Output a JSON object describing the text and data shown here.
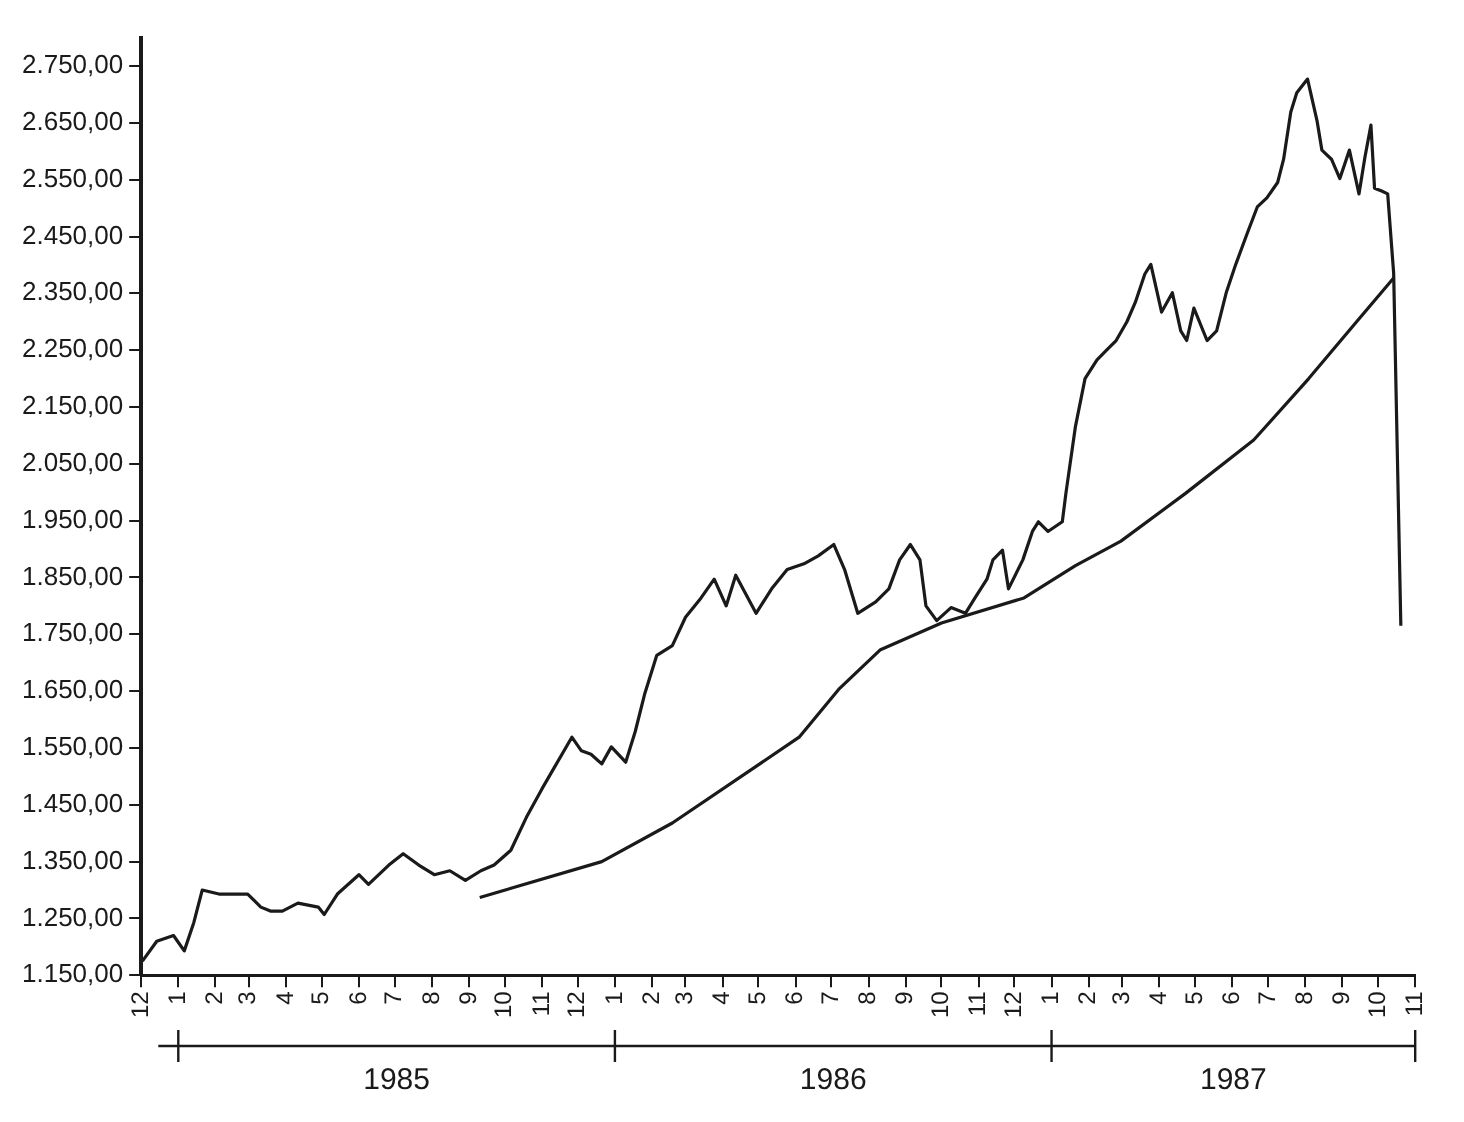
{
  "chart_data": {
    "type": "line",
    "xlim": [
      "1984-12-01",
      "1987-11-01"
    ],
    "xticks": [
      {
        "value": "1984-12-01",
        "label": "12"
      },
      {
        "value": "1985-01-01",
        "label": "1"
      },
      {
        "value": "1985-02-01",
        "label": "2"
      },
      {
        "value": "1985-03-01",
        "label": "3"
      },
      {
        "value": "1985-04-01",
        "label": "4"
      },
      {
        "value": "1985-05-01",
        "label": "5"
      },
      {
        "value": "1985-06-01",
        "label": "6"
      },
      {
        "value": "1985-07-01",
        "label": "7"
      },
      {
        "value": "1985-08-01",
        "label": "8"
      },
      {
        "value": "1985-09-01",
        "label": "9"
      },
      {
        "value": "1985-10-01",
        "label": "10"
      },
      {
        "value": "1985-11-01",
        "label": "11"
      },
      {
        "value": "1985-12-01",
        "label": "12"
      },
      {
        "value": "1986-01-01",
        "label": "1"
      },
      {
        "value": "1986-02-01",
        "label": "2"
      },
      {
        "value": "1986-03-01",
        "label": "3"
      },
      {
        "value": "1986-04-01",
        "label": "4"
      },
      {
        "value": "1986-05-01",
        "label": "5"
      },
      {
        "value": "1986-06-01",
        "label": "6"
      },
      {
        "value": "1986-07-01",
        "label": "7"
      },
      {
        "value": "1986-08-01",
        "label": "8"
      },
      {
        "value": "1986-09-01",
        "label": "9"
      },
      {
        "value": "1986-10-01",
        "label": "10"
      },
      {
        "value": "1986-11-01",
        "label": "11"
      },
      {
        "value": "1986-12-01",
        "label": "12"
      },
      {
        "value": "1987-01-01",
        "label": "1"
      },
      {
        "value": "1987-02-01",
        "label": "2"
      },
      {
        "value": "1987-03-01",
        "label": "3"
      },
      {
        "value": "1987-04-01",
        "label": "4"
      },
      {
        "value": "1987-05-01",
        "label": "5"
      },
      {
        "value": "1987-06-01",
        "label": "6"
      },
      {
        "value": "1987-07-01",
        "label": "7"
      },
      {
        "value": "1987-08-01",
        "label": "8"
      },
      {
        "value": "1987-09-01",
        "label": "9"
      },
      {
        "value": "1987-10-01",
        "label": "10"
      },
      {
        "value": "1987-11-01",
        "label": "11"
      }
    ],
    "ylim": [
      1150,
      2800
    ],
    "yticks": [
      {
        "value": 1150,
        "label": "1.150,00"
      },
      {
        "value": 1250,
        "label": "1.250,00"
      },
      {
        "value": 1350,
        "label": "1.350,00"
      },
      {
        "value": 1450,
        "label": "1.450,00"
      },
      {
        "value": 1550,
        "label": "1.550,00"
      },
      {
        "value": 1650,
        "label": "1.650,00"
      },
      {
        "value": 1750,
        "label": "1.750,00"
      },
      {
        "value": 1850,
        "label": "1.850,00"
      },
      {
        "value": 1950,
        "label": "1.950,00"
      },
      {
        "value": 2050,
        "label": "2.050,00"
      },
      {
        "value": 2150,
        "label": "2.150,00"
      },
      {
        "value": 2250,
        "label": "2.250,00"
      },
      {
        "value": 2350,
        "label": "2.350,00"
      },
      {
        "value": 2450,
        "label": "2.450,00"
      },
      {
        "value": 2550,
        "label": "2.550,00"
      },
      {
        "value": 2650,
        "label": "2.650,00"
      },
      {
        "value": 2750,
        "label": "2.750,00"
      }
    ],
    "grid": false,
    "legend": false,
    "marker": "none",
    "line_style": "solid",
    "annotations": [
      "1985",
      "1986",
      "1987"
    ],
    "series": [
      {
        "color": "#1a1a1a",
        "x": [
          "1984-12-02",
          "1984-12-14",
          "1984-12-28",
          "1985-01-06",
          "1985-01-14",
          "1985-01-21",
          "1985-02-04",
          "1985-02-28",
          "1985-03-11",
          "1985-03-19",
          "1985-03-29",
          "1985-04-11",
          "1985-04-28",
          "1985-05-03",
          "1985-05-14",
          "1985-06-01",
          "1985-06-09",
          "1985-06-26",
          "1985-07-08",
          "1985-07-21",
          "1985-08-03",
          "1985-08-16",
          "1985-08-29",
          "1985-09-11",
          "1985-09-22",
          "1985-10-06",
          "1985-10-19",
          "1985-11-01",
          "1985-11-12",
          "1985-11-26",
          "1985-12-04",
          "1985-12-12",
          "1985-12-21",
          "1985-12-29",
          "1986-01-10",
          "1986-01-18",
          "1986-01-26",
          "1986-02-05",
          "1986-02-18",
          "1986-03-01",
          "1986-03-14",
          "1986-03-25",
          "1986-04-04",
          "1986-04-12",
          "1986-04-29",
          "1986-05-12",
          "1986-05-25",
          "1986-06-08",
          "1986-06-20",
          "1986-07-03",
          "1986-07-12",
          "1986-07-23",
          "1986-08-07",
          "1986-08-18",
          "1986-08-27",
          "1986-09-05",
          "1986-09-13",
          "1986-09-18",
          "1986-09-27",
          "1986-10-09",
          "1986-10-21",
          "1986-10-29",
          "1986-11-08",
          "1986-11-13",
          "1986-11-21",
          "1986-11-26",
          "1986-12-08",
          "1986-12-16",
          "1986-12-21",
          "1986-12-29",
          "1987-01-10",
          "1987-01-13",
          "1987-01-21",
          "1987-01-29",
          "1987-02-08",
          "1987-02-16",
          "1987-02-24",
          "1987-03-05",
          "1987-03-12",
          "1987-03-20",
          "1987-03-25",
          "1987-04-03",
          "1987-04-12",
          "1987-04-19",
          "1987-04-24",
          "1987-04-30",
          "1987-05-11",
          "1987-05-19",
          "1987-05-27",
          "1987-06-04",
          "1987-06-14",
          "1987-06-22",
          "1987-06-30",
          "1987-07-09",
          "1987-07-14",
          "1987-07-20",
          "1987-07-25",
          "1987-08-03",
          "1987-08-11",
          "1987-08-15",
          "1987-08-23",
          "1987-08-30",
          "1987-09-07",
          "1987-09-15",
          "1987-09-20",
          "1987-09-25",
          "1987-09-28",
          "1987-10-04",
          "1987-10-09",
          "1987-10-14",
          "1987-10-20"
        ],
        "values": [
          1175,
          1210,
          1220,
          1193,
          1243,
          1300,
          1293,
          1293,
          1270,
          1263,
          1263,
          1277,
          1270,
          1257,
          1293,
          1327,
          1310,
          1344,
          1364,
          1344,
          1327,
          1334,
          1317,
          1334,
          1344,
          1370,
          1428,
          1478,
          1518,
          1569,
          1545,
          1539,
          1522,
          1552,
          1525,
          1579,
          1646,
          1713,
          1730,
          1780,
          1814,
          1847,
          1800,
          1854,
          1787,
          1830,
          1864,
          1874,
          1888,
          1908,
          1864,
          1787,
          1807,
          1830,
          1881,
          1908,
          1881,
          1800,
          1774,
          1797,
          1787,
          1814,
          1847,
          1881,
          1898,
          1830,
          1881,
          1931,
          1948,
          1931,
          1948,
          1998,
          2116,
          2200,
          2233,
          2250,
          2267,
          2300,
          2334,
          2384,
          2401,
          2317,
          2351,
          2284,
          2267,
          2324,
          2267,
          2284,
          2351,
          2401,
          2458,
          2502,
          2518,
          2545,
          2586,
          2669,
          2703,
          2727,
          2653,
          2602,
          2586,
          2552,
          2602,
          2525,
          2590,
          2646,
          2535,
          2530,
          2525,
          2385,
          1765
        ]
      },
      {
        "color": "#1a1a1a",
        "x": [
          "1985-09-10",
          "1985-12-21",
          "1986-02-18",
          "1986-06-04",
          "1986-07-07",
          "1986-08-11",
          "1986-10-01",
          "1986-12-09",
          "1987-01-21",
          "1987-02-28",
          "1987-04-23",
          "1987-06-19",
          "1987-08-04",
          "1987-09-13",
          "1987-10-14"
        ],
        "values": [
          1287,
          1350,
          1418,
          1569,
          1653,
          1723,
          1770,
          1814,
          1871,
          1914,
          1998,
          2092,
          2200,
          2300,
          2377
        ]
      }
    ]
  }
}
